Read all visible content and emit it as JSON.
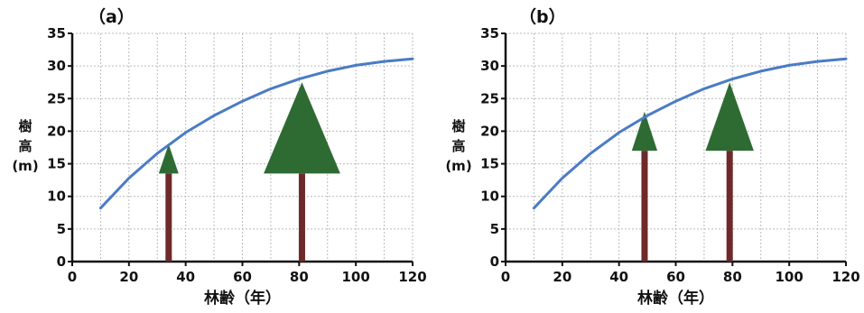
{
  "chart_data": [
    {
      "type": "line",
      "panel_label": "（a）",
      "xlabel": "林齢（年）",
      "ylabel_lines": [
        "樹",
        "高",
        "(m)"
      ],
      "xlim": [
        0,
        120
      ],
      "ylim": [
        0,
        35
      ],
      "xticks": [
        "0",
        "20",
        "40",
        "60",
        "80",
        "100",
        "120"
      ],
      "yticks": [
        "0",
        "5",
        "10",
        "15",
        "20",
        "25",
        "30",
        "35"
      ],
      "grid": true,
      "series": [
        {
          "x": [
            10,
            20,
            30,
            40,
            50,
            60,
            70,
            80,
            90,
            100,
            110,
            120
          ],
          "y": [
            8.2,
            12.8,
            16.6,
            19.8,
            22.4,
            24.6,
            26.5,
            28.0,
            29.2,
            30.1,
            30.7,
            31.1
          ],
          "color": "#4a7cc4"
        }
      ],
      "trees": [
        {
          "age": 34,
          "height": 18,
          "crown_base": 13.5,
          "crown_halfwidth": 3.5
        },
        {
          "age": 81,
          "height": 27.5,
          "crown_base": 13.5,
          "crown_halfwidth": 13.5
        }
      ],
      "colors": {
        "line": "#4a7cc4",
        "crown": "#2e6b33",
        "trunk": "#6e2a2a",
        "grid": "#bbbbbb"
      }
    },
    {
      "type": "line",
      "panel_label": "（b）",
      "xlabel": "林齢（年）",
      "ylabel_lines": [
        "樹",
        "高",
        "(m)"
      ],
      "xlim": [
        0,
        120
      ],
      "ylim": [
        0,
        35
      ],
      "xticks": [
        "0",
        "20",
        "40",
        "60",
        "80",
        "100",
        "120"
      ],
      "yticks": [
        "0",
        "5",
        "10",
        "15",
        "20",
        "25",
        "30",
        "35"
      ],
      "grid": true,
      "series": [
        {
          "x": [
            10,
            20,
            30,
            40,
            50,
            60,
            70,
            80,
            90,
            100,
            110,
            120
          ],
          "y": [
            8.2,
            12.8,
            16.6,
            19.8,
            22.4,
            24.6,
            26.5,
            28.0,
            29.2,
            30.1,
            30.7,
            31.1
          ],
          "color": "#4a7cc4"
        }
      ],
      "trees": [
        {
          "age": 49,
          "height": 23,
          "crown_base": 17,
          "crown_halfwidth": 4.5
        },
        {
          "age": 79,
          "height": 27.5,
          "crown_base": 17,
          "crown_halfwidth": 8.5
        }
      ],
      "colors": {
        "line": "#4a7cc4",
        "crown": "#2e6b33",
        "trunk": "#6e2a2a",
        "grid": "#bbbbbb"
      }
    }
  ]
}
